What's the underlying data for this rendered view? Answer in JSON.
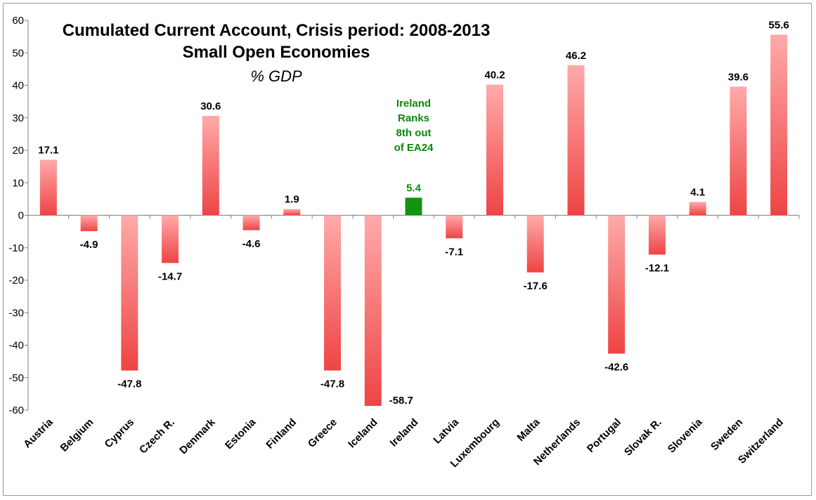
{
  "chart_data": {
    "type": "bar",
    "title": "Cumulated Current Account, Crisis period: 2008-2013",
    "subtitle": "Small Open Economies",
    "unit_label": "% GDP",
    "categories": [
      "Austria",
      "Belgium",
      "Cyprus",
      "Czech R.",
      "Denmark",
      "Estonia",
      "Finland",
      "Greece",
      "Iceland",
      "Ireland",
      "Latvia",
      "Luxembourg",
      "Malta",
      "Netherlands",
      "Portugal",
      "Slovak R.",
      "Slovenia",
      "Sweden",
      "Switzerland"
    ],
    "values": [
      17.1,
      -4.9,
      -47.8,
      -14.7,
      30.6,
      -4.6,
      1.9,
      -47.8,
      -58.7,
      5.4,
      -7.1,
      40.2,
      -17.6,
      46.2,
      -42.6,
      -12.1,
      4.1,
      39.6,
      55.6
    ],
    "value_labels": [
      "17.1",
      "-4.9",
      "-47.8",
      "-14.7",
      "30.6",
      "-4.6",
      "1.9",
      "-47.8",
      "-58.7",
      "5.4",
      "-7.1",
      "40.2",
      "-17.6",
      "46.2",
      "-42.6",
      "-12.1",
      "4.1",
      "39.6",
      "55.6"
    ],
    "highlight_category": "Ireland",
    "ylim": [
      -60,
      60
    ],
    "yticks": [
      "60",
      "50",
      "40",
      "30",
      "20",
      "10",
      "0",
      "-10",
      "-20",
      "-30",
      "-40",
      "-50",
      "-60"
    ],
    "ytick_values": [
      60,
      50,
      40,
      30,
      20,
      10,
      0,
      -10,
      -20,
      -30,
      -40,
      -50,
      -60
    ],
    "annotation": {
      "category": "Ireland",
      "lines": [
        "Ireland",
        "Ranks",
        "8th out",
        "of EA24"
      ]
    },
    "xlabel": "",
    "ylabel": "",
    "grid": false,
    "legend": "none",
    "colors": {
      "bar_top": "#ffaaaa",
      "bar_bottom": "#ee4444",
      "highlight": "#129412",
      "annotation": "#0a8a0a",
      "axis": "#7f7f7f"
    }
  }
}
